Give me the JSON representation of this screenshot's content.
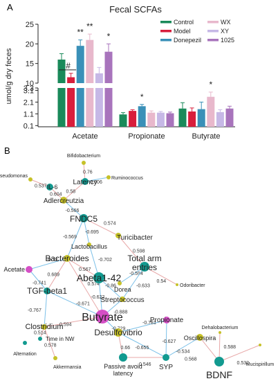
{
  "panels": {
    "a": "A",
    "b": "B"
  },
  "chart_data": [
    {
      "type": "bar",
      "title": "Fecal SCFAs",
      "xlabel": "",
      "ylabel": "umol/g dry feces",
      "categories": [
        "Acetate",
        "Propionate",
        "Butyrate"
      ],
      "axis_break": true,
      "ylim_lower": [
        0,
        3.3
      ],
      "ylim_upper": [
        10,
        25
      ],
      "yticks_lower": [
        "0.1",
        "1.1",
        "2.1",
        "3.1",
        "3.3"
      ],
      "yticks_upper": [
        "10",
        "15",
        "20",
        "25"
      ],
      "series": [
        {
          "name": "Control",
          "color": "#1a8a5a",
          "values": [
            16.0,
            1.05,
            1.55
          ],
          "errors": [
            1.5,
            0.15,
            0.5
          ]
        },
        {
          "name": "Model",
          "color": "#d81e3c",
          "values": [
            11.5,
            1.35,
            1.3
          ],
          "errors": [
            1.0,
            0.1,
            0.3
          ]
        },
        {
          "name": "Donepezil",
          "color": "#3a90b8",
          "values": [
            19.5,
            1.75,
            1.5
          ],
          "errors": [
            1.5,
            0.15,
            0.6
          ]
        },
        {
          "name": "WX",
          "color": "#e8b8cc",
          "values": [
            21.0,
            1.2,
            2.55
          ],
          "errors": [
            1.5,
            0.15,
            0.4
          ]
        },
        {
          "name": "XY",
          "color": "#c6b8e6",
          "values": [
            12.5,
            1.2,
            1.25
          ],
          "errors": [
            1.5,
            0.1,
            0.2
          ]
        },
        {
          "name": "1025",
          "color": "#a874bc",
          "values": [
            18.0,
            1.15,
            1.55
          ],
          "errors": [
            2.0,
            0.1,
            0.2
          ]
        }
      ],
      "legend": {
        "position": "top-right",
        "columns": 2
      },
      "significance": [
        {
          "label": "#",
          "category": "Acetate",
          "series": "Model"
        },
        {
          "label": "**",
          "category": "Acetate",
          "series": "Donepezil"
        },
        {
          "label": "**",
          "category": "Acetate",
          "series": "WX"
        },
        {
          "label": "*",
          "category": "Acetate",
          "series": "1025"
        },
        {
          "label": "*",
          "category": "Propionate",
          "series": "Donepezil"
        },
        {
          "label": "*",
          "category": "Butyrate",
          "series": "WX"
        }
      ]
    },
    {
      "type": "network",
      "nodes": [
        {
          "id": "bifidobacterium",
          "label": "Bifidobacterium",
          "kind": "bacteria"
        },
        {
          "id": "ruminococcus",
          "label": "Ruminococcus",
          "kind": "bacteria"
        },
        {
          "id": "pseudomonas",
          "label": "Pseudomonas",
          "kind": "bacteria"
        },
        {
          "id": "latency",
          "label": "Latency",
          "kind": "phenotype"
        },
        {
          "id": "il6",
          "label": "IL-6",
          "kind": "phenotype"
        },
        {
          "id": "adlercreutzia",
          "label": "Adlercreutzia",
          "kind": "bacteria"
        },
        {
          "id": "fndc5",
          "label": "FNDC5",
          "kind": "phenotype"
        },
        {
          "id": "turicibacter",
          "label": "Turicibacter",
          "kind": "bacteria"
        },
        {
          "id": "lactobacillus",
          "label": "Lactobacillus",
          "kind": "bacteria"
        },
        {
          "id": "bacteroides",
          "label": "Bacteroides",
          "kind": "bacteria"
        },
        {
          "id": "total_arm",
          "label": "Total arm\nentries",
          "kind": "phenotype"
        },
        {
          "id": "acetate",
          "label": "Acetate",
          "kind": "scfa"
        },
        {
          "id": "abeta",
          "label": "Abeta1-42",
          "kind": "phenotype"
        },
        {
          "id": "dorea",
          "label": "Dorea",
          "kind": "bacteria"
        },
        {
          "id": "odoribacter",
          "label": "Odoribacter",
          "kind": "bacteria"
        },
        {
          "id": "tgf",
          "label": "TGF-beta1",
          "kind": "phenotype"
        },
        {
          "id": "streptococcus",
          "label": "Streptococcus",
          "kind": "bacteria"
        },
        {
          "id": "butyrate",
          "label": "Butyrate",
          "kind": "scfa"
        },
        {
          "id": "propionate",
          "label": "Propionate",
          "kind": "scfa"
        },
        {
          "id": "clostridium",
          "label": "Clostridium",
          "kind": "bacteria"
        },
        {
          "id": "time_nw",
          "label": "Time in NW",
          "kind": "phenotype"
        },
        {
          "id": "desulfovibrio",
          "label": "Desulfovibrio",
          "kind": "bacteria"
        },
        {
          "id": "dehalobacterium",
          "label": "Dehalobacterium",
          "kind": "bacteria"
        },
        {
          "id": "oscillospira",
          "label": "Oscillospira",
          "kind": "bacteria"
        },
        {
          "id": "alternation",
          "label": "Alternation",
          "kind": "phenotype"
        },
        {
          "id": "akkermansia",
          "label": "Akkermansia",
          "kind": "bacteria"
        },
        {
          "id": "passive",
          "label": "Passive avoid\nlatency",
          "kind": "phenotype"
        },
        {
          "id": "syp",
          "label": "SYP",
          "kind": "phenotype"
        },
        {
          "id": "bdnf",
          "label": "BDNF",
          "kind": "phenotype"
        },
        {
          "id": "mucispirillum",
          "label": "Mucispirillum",
          "kind": "bacteria"
        }
      ],
      "edges": [
        {
          "from": "bifidobacterium",
          "to": "latency",
          "label": "0.76"
        },
        {
          "from": "ruminococcus",
          "to": "latency",
          "label": "-0.606"
        },
        {
          "from": "pseudomonas",
          "to": "il6",
          "label": "0.537"
        },
        {
          "from": "latency",
          "to": "adlercreutzia",
          "label": "0.58"
        },
        {
          "from": "il6",
          "to": "adlercreutzia",
          "label": "0.604"
        },
        {
          "from": "adlercreutzia",
          "to": "fndc5",
          "label": "-0.566"
        },
        {
          "from": "fndc5",
          "to": "turicibacter",
          "label": "0.574"
        },
        {
          "from": "fndc5",
          "to": "lactobacillus",
          "label": "-0.695"
        },
        {
          "from": "fndc5",
          "to": "bacteroides",
          "label": "-0.569"
        },
        {
          "from": "turicibacter",
          "to": "total_arm",
          "label": "0.598"
        },
        {
          "from": "lactobacillus",
          "to": "abeta",
          "label": "-0.702"
        },
        {
          "from": "bacteroides",
          "to": "abeta",
          "label": "0.567"
        },
        {
          "from": "bacteroides",
          "to": "acetate",
          "label": "-0.73"
        },
        {
          "from": "bacteroides",
          "to": "tgf",
          "label": "0.689"
        },
        {
          "from": "bacteroides",
          "to": "butyrate",
          "label": "0.574"
        },
        {
          "from": "total_arm",
          "to": "dorea",
          "label": "-0.594"
        },
        {
          "from": "total_arm",
          "to": "streptococcus",
          "label": "-0.633"
        },
        {
          "from": "total_arm",
          "to": "odoribacter",
          "label": "0.54"
        },
        {
          "from": "acetate",
          "to": "tgf",
          "label": "-0.741"
        },
        {
          "from": "abeta",
          "to": "butyrate",
          "label": "-0.622"
        },
        {
          "from": "abeta",
          "to": "streptococcus",
          "label": "-0.86"
        },
        {
          "from": "tgf",
          "to": "butyrate",
          "label": "-0.671"
        },
        {
          "from": "tgf",
          "to": "clostridium",
          "label": "-0.767"
        },
        {
          "from": "streptococcus",
          "to": "butyrate",
          "label": "-0.888"
        },
        {
          "from": "butyrate",
          "to": "clostridium",
          "label": "0.594"
        },
        {
          "from": "butyrate",
          "to": "desulfovibrio",
          "label": "-0.729"
        },
        {
          "from": "clostridium",
          "to": "time_nw",
          "label": "0.514"
        },
        {
          "from": "clostridium",
          "to": "akkermansia",
          "label": "0.578"
        },
        {
          "from": "propionate",
          "to": "desulfovibrio",
          "label": "-0.781"
        },
        {
          "from": "propionate",
          "to": "syp",
          "label": "-0.627"
        },
        {
          "from": "desulfovibrio",
          "to": "passive",
          "label": "0.66"
        },
        {
          "from": "desulfovibrio",
          "to": "syp",
          "label": "-0.655"
        },
        {
          "from": "oscillospira",
          "to": "syp",
          "label": "-0.534"
        },
        {
          "from": "oscillospira",
          "to": "bdnf",
          "label": "0.568"
        },
        {
          "from": "dehalobacterium",
          "to": "bdnf",
          "label": "0.588"
        },
        {
          "from": "bdnf",
          "to": "mucispirillum",
          "label": "0.532"
        },
        {
          "from": "passive",
          "to": "syp",
          "label": "0.546"
        }
      ]
    }
  ]
}
